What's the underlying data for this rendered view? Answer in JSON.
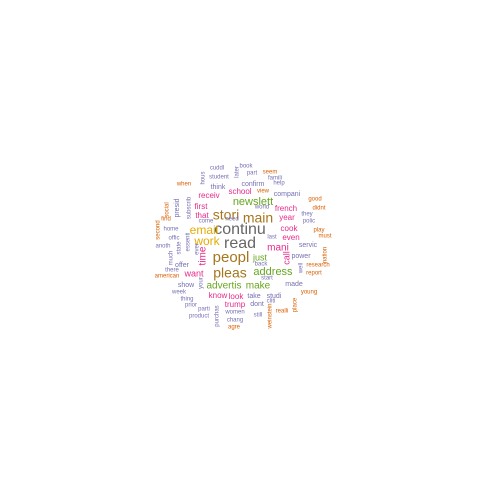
{
  "word_cloud": {
    "palette": {
      "teal": "#1b9e77",
      "orange": "#d95f02",
      "purple": "#7570b3",
      "pink": "#e7298a",
      "green": "#66a61e",
      "gold": "#e6ab02",
      "brown": "#a6761d",
      "gray": "#666666"
    },
    "words": [
      {
        "text": "continu",
        "color": "#666666",
        "weight": 9
      },
      {
        "text": "read",
        "color": "#666666",
        "weight": 10
      },
      {
        "text": "peopl",
        "color": "#a6761d",
        "weight": 9
      },
      {
        "text": "stori",
        "color": "#a6761d",
        "weight": 9
      },
      {
        "text": "main",
        "color": "#a6761d",
        "weight": 9
      },
      {
        "text": "pleas",
        "color": "#a6761d",
        "weight": 9
      },
      {
        "text": "email",
        "color": "#e6ab02",
        "weight": 7
      },
      {
        "text": "work",
        "color": "#e6ab02",
        "weight": 6
      },
      {
        "text": "newslett",
        "color": "#66a61e",
        "weight": 6
      },
      {
        "text": "address",
        "color": "#66a61e",
        "weight": 6
      },
      {
        "text": "advertis",
        "color": "#66a61e",
        "weight": 5
      },
      {
        "text": "make",
        "color": "#66a61e",
        "weight": 5
      },
      {
        "text": "mani",
        "color": "#e7298a",
        "weight": 5
      },
      {
        "text": "time",
        "color": "#e7298a",
        "weight": 5
      },
      {
        "text": "want",
        "color": "#e7298a",
        "weight": 4
      },
      {
        "text": "just",
        "color": "#66a61e",
        "weight": 4
      },
      {
        "text": "call",
        "color": "#e7298a",
        "weight": 4
      },
      {
        "text": "school",
        "color": "#e7298a",
        "weight": 3
      },
      {
        "text": "receiv",
        "color": "#e7298a",
        "weight": 3
      },
      {
        "text": "first",
        "color": "#e7298a",
        "weight": 3
      },
      {
        "text": "that",
        "color": "#e7298a",
        "weight": 3
      },
      {
        "text": "french",
        "color": "#e7298a",
        "weight": 3
      },
      {
        "text": "cook",
        "color": "#e7298a",
        "weight": 3
      },
      {
        "text": "even",
        "color": "#e7298a",
        "weight": 3
      },
      {
        "text": "year",
        "color": "#e7298a",
        "weight": 3
      },
      {
        "text": "know",
        "color": "#e7298a",
        "weight": 3
      },
      {
        "text": "look",
        "color": "#e7298a",
        "weight": 3
      },
      {
        "text": "trump",
        "color": "#e7298a",
        "weight": 3
      },
      {
        "text": "compani",
        "color": "#7570b3",
        "weight": 2
      },
      {
        "text": "confirm",
        "color": "#7570b3",
        "weight": 2
      },
      {
        "text": "think",
        "color": "#7570b3",
        "weight": 2
      },
      {
        "text": "servic",
        "color": "#7570b3",
        "weight": 2
      },
      {
        "text": "power",
        "color": "#7570b3",
        "weight": 2
      },
      {
        "text": "made",
        "color": "#7570b3",
        "weight": 2
      },
      {
        "text": "take",
        "color": "#7570b3",
        "weight": 2
      },
      {
        "text": "studi",
        "color": "#7570b3",
        "weight": 2
      },
      {
        "text": "show",
        "color": "#7570b3",
        "weight": 2
      },
      {
        "text": "offer",
        "color": "#7570b3",
        "weight": 2
      },
      {
        "text": "subscrib",
        "color": "#7570b3",
        "weight": 2
      },
      {
        "text": "presid",
        "color": "#7570b3",
        "weight": 2
      },
      {
        "text": "dont",
        "color": "#7570b3",
        "weight": 2
      },
      {
        "text": "cuddl",
        "color": "#7570b3",
        "weight": 1
      },
      {
        "text": "book",
        "color": "#7570b3",
        "weight": 1
      },
      {
        "text": "later",
        "color": "#7570b3",
        "weight": 1
      },
      {
        "text": "part",
        "color": "#7570b3",
        "weight": 1
      },
      {
        "text": "seem",
        "color": "#d95f02",
        "weight": 1
      },
      {
        "text": "hous",
        "color": "#7570b3",
        "weight": 1
      },
      {
        "text": "student",
        "color": "#7570b3",
        "weight": 1
      },
      {
        "text": "famili",
        "color": "#7570b3",
        "weight": 1
      },
      {
        "text": "help",
        "color": "#7570b3",
        "weight": 1
      },
      {
        "text": "when",
        "color": "#d95f02",
        "weight": 1
      },
      {
        "text": "view",
        "color": "#d95f02",
        "weight": 1
      },
      {
        "text": "good",
        "color": "#d95f02",
        "weight": 1
      },
      {
        "text": "social",
        "color": "#d95f02",
        "weight": 1
      },
      {
        "text": "world",
        "color": "#7570b3",
        "weight": 1
      },
      {
        "text": "come",
        "color": "#7570b3",
        "weight": 1
      },
      {
        "text": "they",
        "color": "#7570b3",
        "weight": 1
      },
      {
        "text": "didnt",
        "color": "#d95f02",
        "weight": 1
      },
      {
        "text": "polic",
        "color": "#7570b3",
        "weight": 1
      },
      {
        "text": "find",
        "color": "#d95f02",
        "weight": 1
      },
      {
        "text": "need",
        "color": "#7570b3",
        "weight": 1
      },
      {
        "text": "play",
        "color": "#d95f02",
        "weight": 1
      },
      {
        "text": "must",
        "color": "#d95f02",
        "weight": 1
      },
      {
        "text": "home",
        "color": "#7570b3",
        "weight": 1
      },
      {
        "text": "ever",
        "color": "#7570b3",
        "weight": 1
      },
      {
        "text": "state",
        "color": "#7570b3",
        "weight": 1
      },
      {
        "text": "second",
        "color": "#d95f02",
        "weight": 1
      },
      {
        "text": "offic",
        "color": "#7570b3",
        "weight": 1
      },
      {
        "text": "anoth",
        "color": "#7570b3",
        "weight": 1
      },
      {
        "text": "last",
        "color": "#7570b3",
        "weight": 1
      },
      {
        "text": "essenti",
        "color": "#7570b3",
        "weight": 1
      },
      {
        "text": "much",
        "color": "#7570b3",
        "weight": 1
      },
      {
        "text": "back",
        "color": "#7570b3",
        "weight": 1
      },
      {
        "text": "well",
        "color": "#7570b3",
        "weight": 1
      },
      {
        "text": "nation",
        "color": "#d95f02",
        "weight": 1
      },
      {
        "text": "research",
        "color": "#d95f02",
        "weight": 1
      },
      {
        "text": "there",
        "color": "#7570b3",
        "weight": 1
      },
      {
        "text": "report",
        "color": "#d95f02",
        "weight": 1
      },
      {
        "text": "american",
        "color": "#d95f02",
        "weight": 1
      },
      {
        "text": "start",
        "color": "#7570b3",
        "weight": 1
      },
      {
        "text": "young",
        "color": "#d95f02",
        "weight": 1
      },
      {
        "text": "week",
        "color": "#7570b3",
        "weight": 1
      },
      {
        "text": "thing",
        "color": "#7570b3",
        "weight": 1
      },
      {
        "text": "prior",
        "color": "#7570b3",
        "weight": 1
      },
      {
        "text": "parti",
        "color": "#7570b3",
        "weight": 1
      },
      {
        "text": "cliti",
        "color": "#7570b3",
        "weight": 1
      },
      {
        "text": "realli",
        "color": "#d95f02",
        "weight": 1
      },
      {
        "text": "place",
        "color": "#d95f02",
        "weight": 1
      },
      {
        "text": "product",
        "color": "#7570b3",
        "weight": 1
      },
      {
        "text": "women",
        "color": "#7570b3",
        "weight": 1
      },
      {
        "text": "still",
        "color": "#7570b3",
        "weight": 1
      },
      {
        "text": "purchas",
        "color": "#7570b3",
        "weight": 1
      },
      {
        "text": "chang",
        "color": "#7570b3",
        "weight": 1
      },
      {
        "text": "weinstein",
        "color": "#d95f02",
        "weight": 1
      },
      {
        "text": "agre",
        "color": "#d95f02",
        "weight": 1
      },
      {
        "text": "your",
        "color": "#7570b3",
        "weight": 1
      }
    ]
  }
}
